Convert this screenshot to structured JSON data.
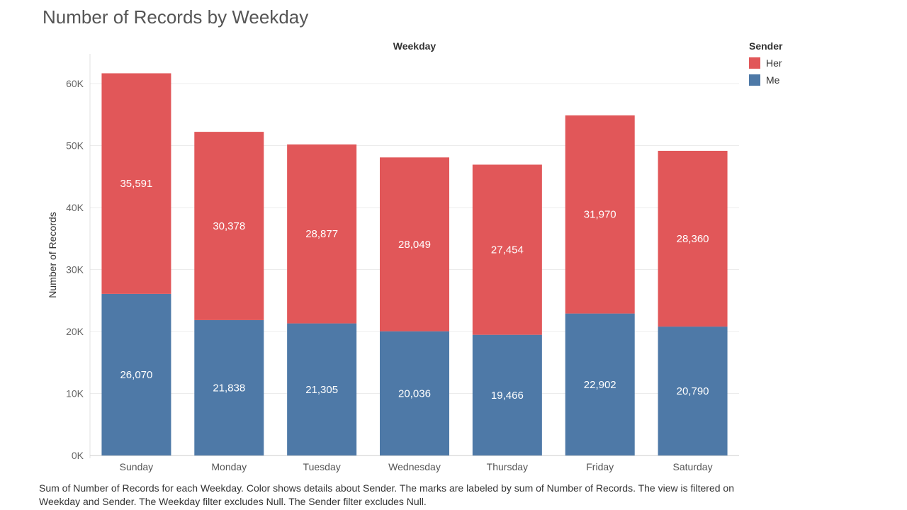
{
  "title": "Number of Records by Weekday",
  "caption": "Sum of Number of Records for each Weekday.  Color shows details about Sender.  The marks are labeled by sum of Number of Records. The view is filtered on Weekday and Sender. The Weekday filter excludes Null. The Sender filter excludes Null.",
  "legend": {
    "title": "Sender",
    "items": [
      {
        "label": "Her",
        "color": "#e15759"
      },
      {
        "label": "Me",
        "color": "#4e79a7"
      }
    ]
  },
  "chart_data": {
    "type": "bar",
    "stacked": true,
    "title": "Number of Records by Weekday",
    "column_header": "Weekday",
    "xlabel": "",
    "ylabel": "Number of Records",
    "ylim": [
      0,
      65000
    ],
    "y_ticks": [
      0,
      10000,
      20000,
      30000,
      40000,
      50000,
      60000
    ],
    "y_tick_labels": [
      "0K",
      "10K",
      "20K",
      "30K",
      "40K",
      "50K",
      "60K"
    ],
    "categories": [
      "Sunday",
      "Monday",
      "Tuesday",
      "Wednesday",
      "Thursday",
      "Friday",
      "Saturday"
    ],
    "series": [
      {
        "name": "Me",
        "color": "#4e79a7",
        "values": [
          26070,
          21838,
          21305,
          20036,
          19466,
          22902,
          20790
        ],
        "labels": [
          "26,070",
          "21,838",
          "21,305",
          "20,036",
          "19,466",
          "22,902",
          "20,790"
        ]
      },
      {
        "name": "Her",
        "color": "#e15759",
        "values": [
          35591,
          30378,
          28877,
          28049,
          27454,
          31970,
          28360
        ],
        "labels": [
          "35,591",
          "30,378",
          "28,877",
          "28,049",
          "27,454",
          "31,970",
          "28,360"
        ]
      }
    ],
    "grid": true,
    "legend_position": "right"
  }
}
